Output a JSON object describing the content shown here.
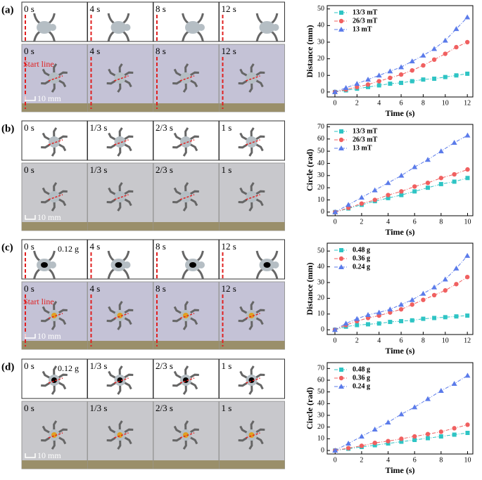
{
  "panels": [
    {
      "label": "(a)",
      "times": [
        "0 s",
        "4 s",
        "8 s",
        "12 s"
      ],
      "start_line": "Start line",
      "scale": "10 mm"
    },
    {
      "label": "(b)",
      "times": [
        "0 s",
        "1/3 s",
        "2/3 s",
        "1 s"
      ],
      "scale": "10 mm"
    },
    {
      "label": "(c)",
      "times": [
        "0 s",
        "4 s",
        "8 s",
        "12 s"
      ],
      "mass": "0.12 g",
      "start_line": "Start line",
      "scale": "10 mm"
    },
    {
      "label": "(d)",
      "times": [
        "0 s",
        "1/3 s",
        "2/3 s",
        "1 s"
      ],
      "mass": "0.12 g",
      "scale": "10 mm"
    }
  ],
  "chart_data": [
    {
      "type": "line",
      "x_label": "Time (s)",
      "y_label": "Distance (mm)",
      "x": [
        0,
        1,
        2,
        3,
        4,
        5,
        6,
        7,
        8,
        9,
        10,
        11,
        12
      ],
      "xlim": [
        -0.7,
        12.5
      ],
      "xticks": [
        0,
        2,
        4,
        6,
        8,
        10,
        12
      ],
      "ylim": [
        -3,
        52
      ],
      "yticks": [
        0,
        10,
        20,
        30,
        40,
        50
      ],
      "legend": "upper left",
      "series": [
        {
          "name": "13/3 mT",
          "color": "#2ec4c4",
          "marker": "square",
          "values": [
            0,
            1,
            2,
            3,
            4,
            5,
            5.5,
            6.5,
            7.5,
            8,
            9,
            10,
            11
          ]
        },
        {
          "name": "26/3 mT",
          "color": "#f06060",
          "marker": "circle",
          "values": [
            0,
            1.5,
            3,
            4.5,
            6.5,
            8.5,
            10.5,
            13,
            16,
            19.5,
            23,
            27,
            30
          ]
        },
        {
          "name": "13 mT",
          "color": "#5b7bea",
          "marker": "triangle",
          "values": [
            0,
            2.5,
            5,
            7.5,
            10,
            12.5,
            15,
            18.5,
            22,
            26,
            31,
            38,
            45
          ]
        }
      ]
    },
    {
      "type": "line",
      "x_label": "Time (s)",
      "y_label": "Circle (rad)",
      "x": [
        0,
        1,
        2,
        3,
        4,
        5,
        6,
        7,
        8,
        9,
        10
      ],
      "xlim": [
        -0.6,
        10.4
      ],
      "xticks": [
        0,
        2,
        4,
        6,
        8,
        10
      ],
      "ylim": [
        -3,
        72
      ],
      "yticks": [
        0,
        10,
        20,
        30,
        40,
        50,
        60,
        70
      ],
      "legend": "upper left",
      "series": [
        {
          "name": "13/3 mT",
          "color": "#2ec4c4",
          "marker": "square",
          "values": [
            0,
            3,
            6,
            9,
            11.5,
            14,
            17,
            20,
            23,
            25,
            28
          ]
        },
        {
          "name": "26/3 mT",
          "color": "#f06060",
          "marker": "circle",
          "values": [
            0,
            3.5,
            7,
            10,
            14,
            17,
            21,
            24,
            28,
            31,
            35
          ]
        },
        {
          "name": "13 mT",
          "color": "#5b7bea",
          "marker": "triangle",
          "values": [
            0,
            6,
            12,
            18,
            24,
            30,
            37,
            43,
            50,
            57,
            63
          ]
        }
      ]
    },
    {
      "type": "line",
      "x_label": "Time (s)",
      "y_label": "Distance (mm)",
      "x": [
        0,
        1,
        2,
        3,
        4,
        5,
        6,
        7,
        8,
        9,
        10,
        11,
        12
      ],
      "xlim": [
        -0.7,
        12.5
      ],
      "xticks": [
        0,
        2,
        4,
        6,
        8,
        10,
        12
      ],
      "ylim": [
        -3,
        55
      ],
      "yticks": [
        0,
        10,
        20,
        30,
        40,
        50
      ],
      "legend": "upper left",
      "series": [
        {
          "name": "0.48 g",
          "color": "#2ec4c4",
          "marker": "square",
          "values": [
            0,
            2,
            3,
            3.5,
            4,
            5,
            5.5,
            6,
            7,
            7.5,
            8,
            8.5,
            9
          ]
        },
        {
          "name": "0.36 g",
          "color": "#f06060",
          "marker": "circle",
          "values": [
            0,
            3,
            5.5,
            7.5,
            9,
            11,
            13,
            16,
            19,
            22,
            25,
            29,
            33.5
          ]
        },
        {
          "name": "0.24 g",
          "color": "#5b7bea",
          "marker": "triangle",
          "values": [
            0,
            4,
            7,
            9.5,
            11,
            13,
            16,
            19,
            23,
            27,
            32,
            39,
            47
          ]
        }
      ]
    },
    {
      "type": "line",
      "x_label": "Time (s)",
      "y_label": "Circle (rad)",
      "x": [
        0,
        1,
        2,
        3,
        4,
        5,
        6,
        7,
        8,
        9,
        10
      ],
      "xlim": [
        -0.6,
        10.4
      ],
      "xticks": [
        0,
        2,
        4,
        6,
        8,
        10
      ],
      "ylim": [
        -3,
        75
      ],
      "yticks": [
        0,
        10,
        20,
        30,
        40,
        50,
        60,
        70
      ],
      "legend": "upper left",
      "series": [
        {
          "name": "0.48 g",
          "color": "#2ec4c4",
          "marker": "square",
          "values": [
            0,
            1.5,
            3,
            4.5,
            6,
            7.5,
            9,
            10.5,
            12,
            13.5,
            15
          ]
        },
        {
          "name": "0.36 g",
          "color": "#f06060",
          "marker": "circle",
          "values": [
            0,
            2,
            4,
            6.5,
            8,
            10,
            12,
            14,
            16,
            19,
            22
          ]
        },
        {
          "name": "0.24 g",
          "color": "#5b7bea",
          "marker": "triangle",
          "values": [
            0,
            6,
            12,
            18,
            24,
            31,
            37,
            44,
            51,
            57,
            64
          ]
        }
      ]
    }
  ]
}
